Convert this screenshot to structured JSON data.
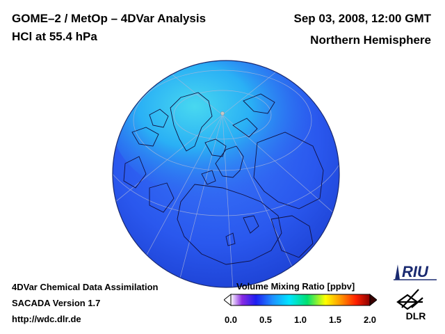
{
  "header": {
    "title_left_1": "GOME–2 / MetOp – 4DVar Analysis",
    "title_left_2": "HCl at 55.4 hPa",
    "title_right_1": "Sep 03, 2008, 12:00 GMT",
    "title_right_2": "Northern Hemisphere"
  },
  "footer": {
    "line1": "4DVar Chemical Data Assimilation",
    "line2": "SACADA Version 1.7",
    "line3": "http://wdc.dlr.de"
  },
  "colorbar": {
    "label": "Volume Mixing Ratio [ppbv]",
    "ticks": [
      "0.0",
      "0.5",
      "1.0",
      "1.5",
      "2.0"
    ],
    "range": [
      0.0,
      2.0
    ],
    "colors": [
      "#ffffff",
      "#8a2be2",
      "#1e1ef0",
      "#1e90ff",
      "#00e5ff",
      "#00e070",
      "#ffff00",
      "#ff8c00",
      "#ff2000",
      "#8b0000"
    ]
  },
  "logos": {
    "riu": "RIU",
    "dlr": "DLR"
  },
  "map": {
    "hemisphere": "Northern Hemisphere",
    "colors": {
      "ocean_base": "#2e5ef0",
      "high_lat": "#2a8cf5",
      "max": "#40d8f0",
      "coast": "#101040",
      "grid": "#b0b8d8"
    }
  }
}
